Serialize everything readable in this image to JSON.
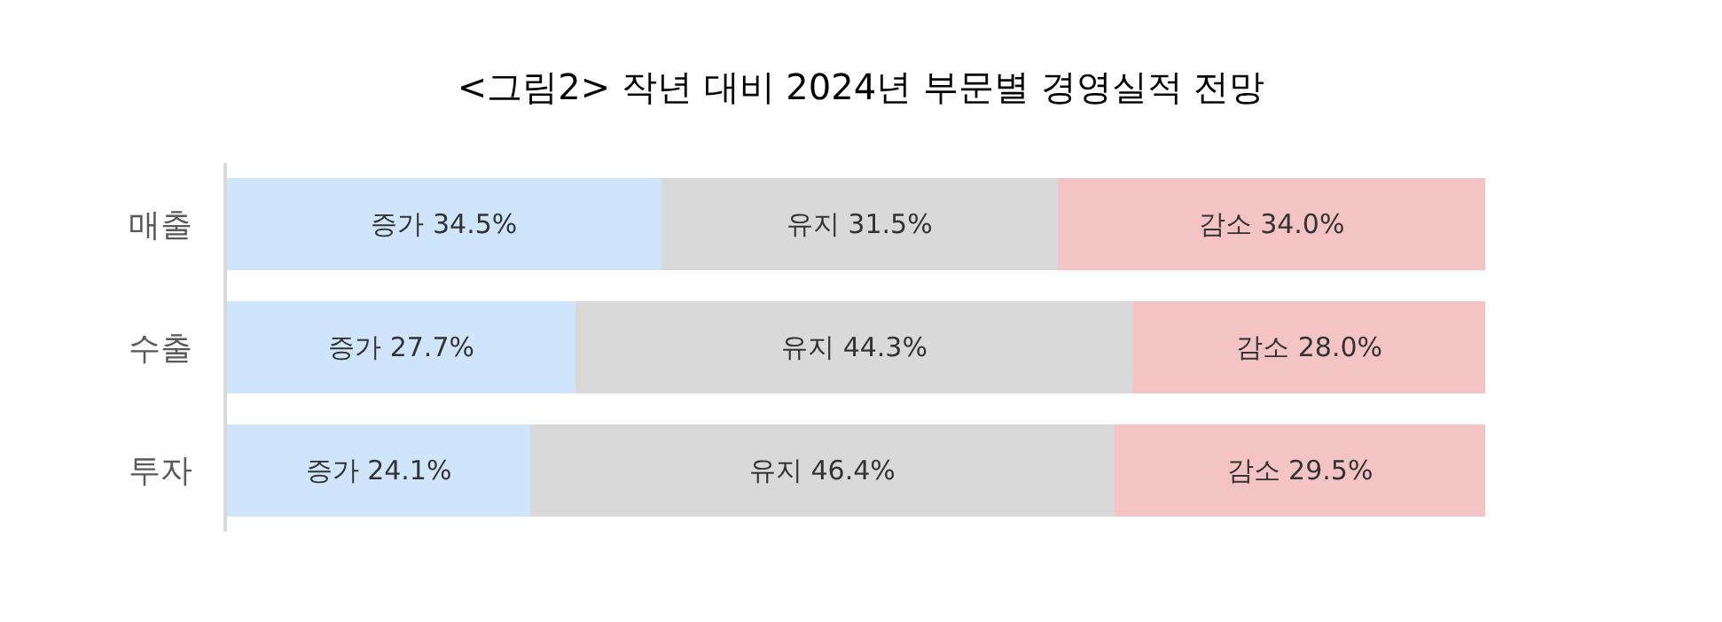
{
  "chart_data": {
    "type": "bar",
    "orientation": "horizontal",
    "stacked": true,
    "legend": false,
    "title": "<그림2> 작년 대비 2024년 부문별 경영실적 전망",
    "categories": [
      "매출",
      "수출",
      "투자"
    ],
    "series": [
      {
        "color": "#cfe5fb",
        "values": [
          34.5,
          27.7,
          24.1
        ],
        "value_labels": [
          "증가 34.5%",
          "증가 27.7%",
          "증가 24.1%"
        ]
      },
      {
        "color": "#d9d9d9",
        "values": [
          31.5,
          44.3,
          46.4
        ],
        "value_labels": [
          "유지 31.5%",
          "유지 44.3%",
          "유지 46.4%"
        ]
      },
      {
        "color": "#f4c3c3",
        "values": [
          34.0,
          28.0,
          29.5
        ],
        "value_labels": [
          "감소 34.0%",
          "감소 28.0%",
          "감소 29.5%"
        ]
      }
    ]
  }
}
